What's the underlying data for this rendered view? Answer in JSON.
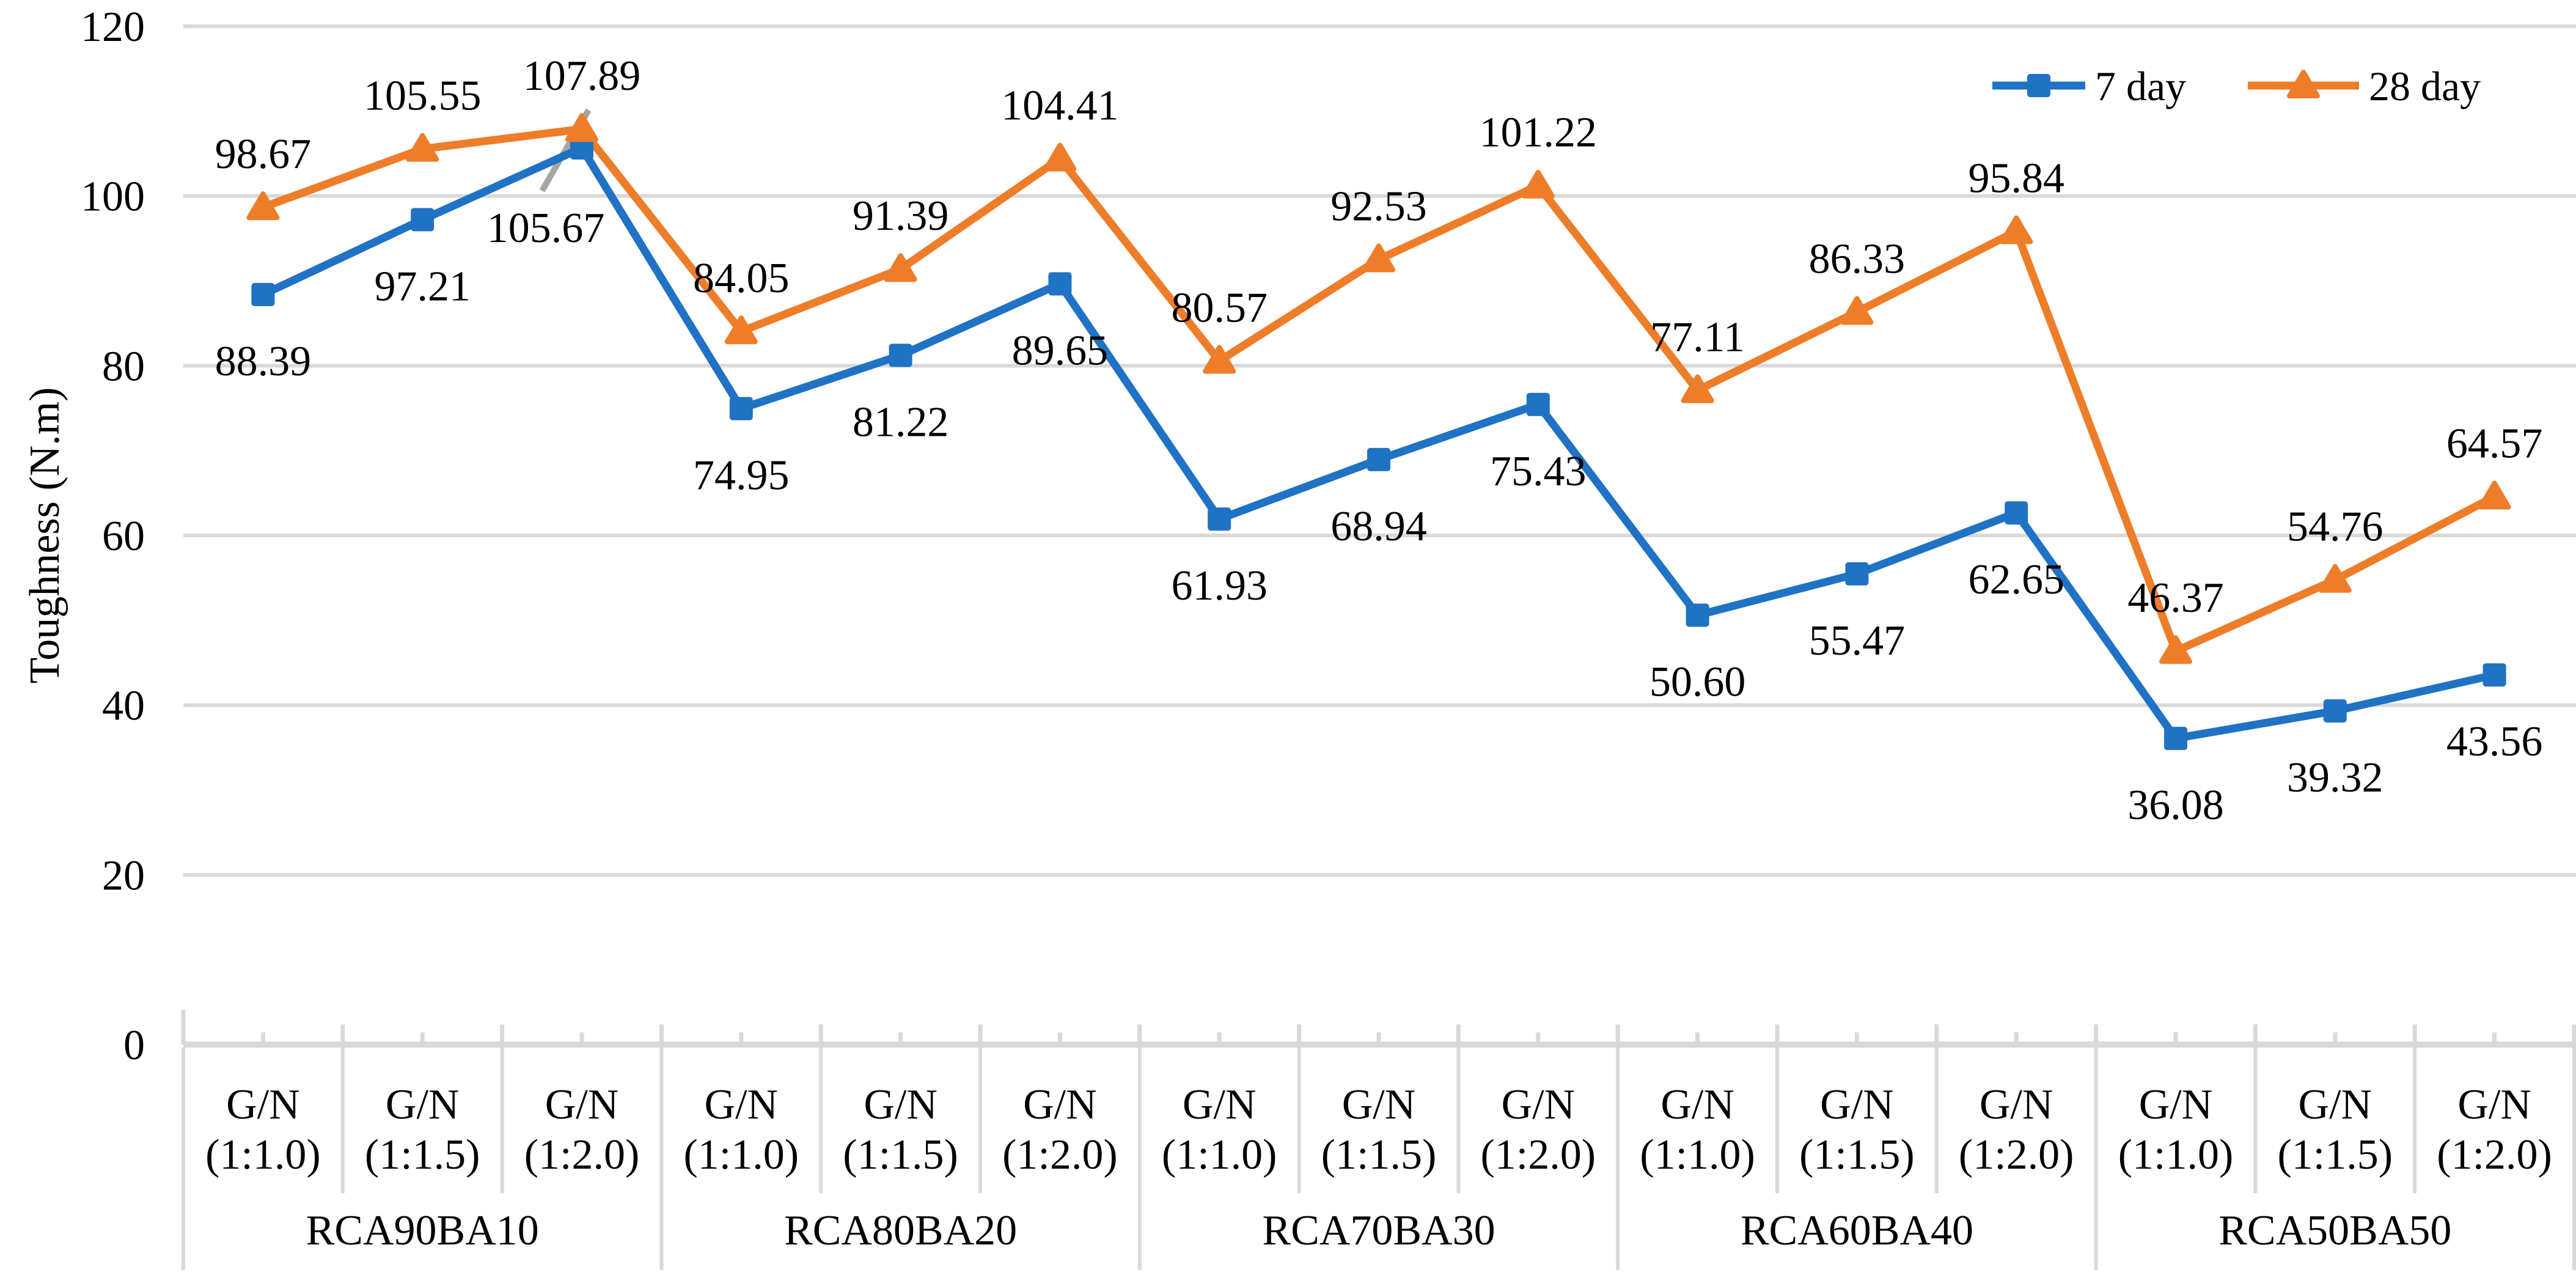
{
  "chart_data": {
    "type": "line",
    "title": "",
    "ylabel": "Toughness (N.m)",
    "xlabel": "",
    "ylim": [
      0,
      120
    ],
    "yticks": [
      0,
      20,
      40,
      60,
      80,
      100,
      120
    ],
    "grid": true,
    "legend_position": "top-right",
    "groups": [
      "RCA90BA10",
      "RCA80BA20",
      "RCA70BA30",
      "RCA60BA40",
      "RCA50BA50"
    ],
    "sub_category_line1": "G/N",
    "sub_category_line2_pattern": [
      "(1:1.0)",
      "(1:1.5)",
      "(1:2.0)"
    ],
    "categories": [
      "RCA90BA10 G/N (1:1.0)",
      "RCA90BA10 G/N (1:1.5)",
      "RCA90BA10 G/N (1:2.0)",
      "RCA80BA20 G/N (1:1.0)",
      "RCA80BA20 G/N (1:1.5)",
      "RCA80BA20 G/N (1:2.0)",
      "RCA70BA30 G/N (1:1.0)",
      "RCA70BA30 G/N (1:1.5)",
      "RCA70BA30 G/N (1:2.0)",
      "RCA60BA40 G/N (1:1.0)",
      "RCA60BA40 G/N (1:1.5)",
      "RCA60BA40 G/N (1:2.0)",
      "RCA50BA50 G/N (1:1.0)",
      "RCA50BA50 G/N (1:1.5)",
      "RCA50BA50 G/N (1:2.0)"
    ],
    "series": [
      {
        "name": "7 day",
        "color": "#1F72C4",
        "marker": "square",
        "label_position": "below",
        "values": [
          88.39,
          97.21,
          105.67,
          74.95,
          81.22,
          89.65,
          61.93,
          68.94,
          75.43,
          50.6,
          55.47,
          62.65,
          36.08,
          39.32,
          43.56
        ]
      },
      {
        "name": "28 day",
        "color": "#EE7D29",
        "marker": "triangle",
        "label_position": "above",
        "values": [
          98.67,
          105.55,
          107.89,
          84.05,
          91.39,
          104.41,
          80.57,
          92.53,
          101.22,
          77.11,
          86.33,
          95.84,
          46.37,
          54.76,
          64.57
        ]
      }
    ],
    "data_label_decimals": 2,
    "moved_label": {
      "series_index": 0,
      "point_index": 2,
      "label": "105.67",
      "has_leader_line": true
    },
    "colors": {
      "gridline": "#D9D9D9",
      "axis_line": "#D9D9D9",
      "separator": "#D9D9D9",
      "leader_line": "#A6A6A6",
      "text": "#000000"
    }
  },
  "legend": {
    "items": [
      {
        "label": "7 day",
        "swatch": "blue-line-square-marker-icon"
      },
      {
        "label": "28 day",
        "swatch": "orange-line-triangle-marker-icon"
      }
    ]
  },
  "axis_titles": {
    "y": "Toughness (N.m)"
  }
}
